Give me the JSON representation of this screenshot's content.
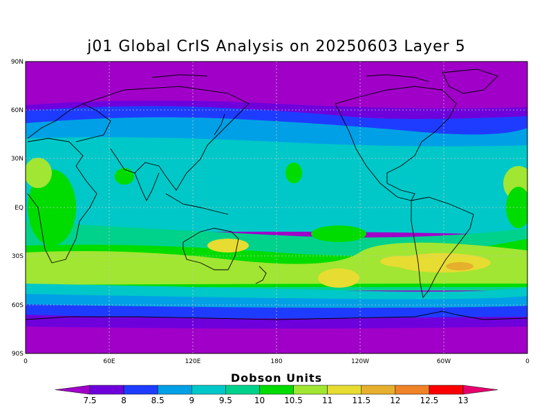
{
  "title": "j01 Global CrIS Analysis on 20250603 Layer 5",
  "axes": {
    "lat_labels": [
      "90N",
      "60N",
      "30N",
      "EQ",
      "30S",
      "60S",
      "90S"
    ],
    "lon_labels": [
      "0",
      "60E",
      "120E",
      "180",
      "120W",
      "60W",
      "0"
    ]
  },
  "legend": {
    "title": "Dobson Units",
    "ticks": [
      "7.5",
      "8",
      "8.5",
      "9",
      "9.5",
      "10",
      "10.5",
      "11",
      "11.5",
      "12",
      "12.5",
      "13"
    ],
    "colors": [
      "#a000c8",
      "#6e00dc",
      "#1e3cff",
      "#00a0e6",
      "#00c8c8",
      "#00d28c",
      "#00dc00",
      "#a0e632",
      "#e6dc32",
      "#e6af2d",
      "#f08228",
      "#fa0000",
      "#e6006e"
    ]
  },
  "background_color": "#a000c8"
}
